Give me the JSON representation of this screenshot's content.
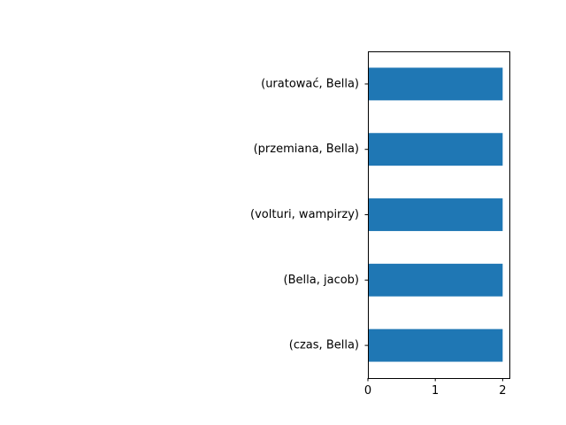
{
  "chart_data": {
    "type": "bar",
    "orientation": "horizontal",
    "categories": [
      "(czas, Bella)",
      "(Bella, jacob)",
      "(volturi, wampirzy)",
      "(przemiana, Bella)",
      "(uratować, Bella)"
    ],
    "values": [
      2,
      2,
      2,
      2,
      2
    ],
    "xticks": [
      "0",
      "1",
      "2"
    ],
    "xlim": [
      0,
      2.1
    ],
    "title": "",
    "xlabel": "",
    "ylabel": "",
    "grid": false,
    "bar_color": "#1f77b4"
  }
}
